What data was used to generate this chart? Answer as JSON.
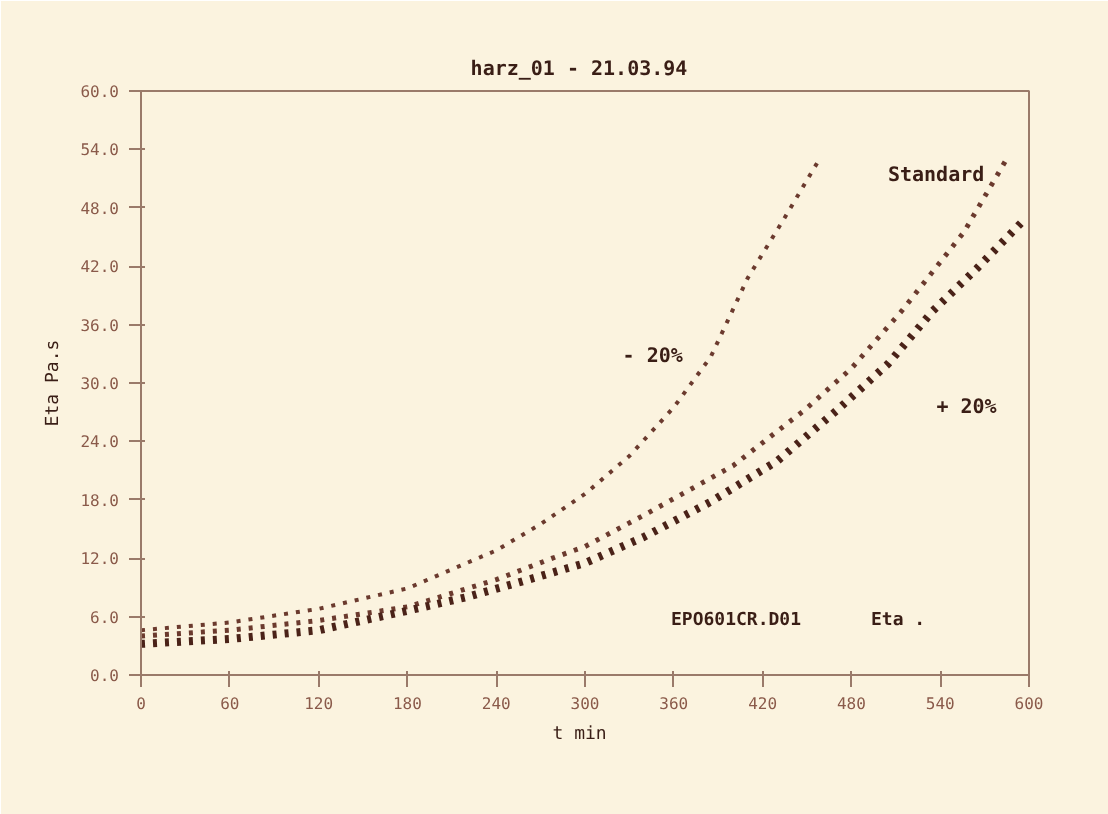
{
  "chart_data": {
    "type": "line",
    "title": "harz_01  - 21.03.94",
    "xlabel": "t  min",
    "ylabel": "Eta Pa.s",
    "xlim": [
      0,
      600
    ],
    "xticks": [
      0,
      60,
      120,
      180,
      240,
      300,
      360,
      420,
      480,
      540,
      600
    ],
    "ylim": [
      0,
      60
    ],
    "yticks": [
      {
        "value": 0,
        "label": "0.0"
      },
      {
        "value": 6,
        "label": "6.0"
      },
      {
        "value": 12,
        "label": "12.0"
      },
      {
        "value": 18,
        "label": "18.0"
      },
      {
        "value": 24,
        "label": "24.0"
      },
      {
        "value": 30,
        "label": "30.0"
      },
      {
        "value": 36,
        "label": "36.0"
      },
      {
        "value": 42,
        "label": "42.0"
      },
      {
        "value": 48,
        "label": "48.0"
      },
      {
        "value": 54,
        "label": "54.0"
      },
      {
        "value": 60,
        "label": "60.0"
      }
    ],
    "grid": false,
    "line_style": "dotted",
    "series": [
      {
        "name": "- 20%",
        "color": "#6b3a2e",
        "x": [
          0,
          60,
          120,
          180,
          240,
          270,
          300,
          330,
          360,
          385,
          410,
          435,
          458
        ],
        "values": [
          4.6,
          5.4,
          6.8,
          8.9,
          12.8,
          15.5,
          18.6,
          22.5,
          27.5,
          32.7,
          40.8,
          47.0,
          52.9
        ]
      },
      {
        "name": "Standard",
        "color": "#6b3a2e",
        "x": [
          0,
          60,
          120,
          180,
          240,
          278,
          300,
          342,
          400,
          449,
          480,
          514,
          556,
          586
        ],
        "values": [
          4.0,
          4.6,
          5.6,
          7.0,
          9.8,
          12.0,
          13.2,
          16.6,
          21.5,
          27.3,
          31.5,
          37.4,
          45.5,
          53.3
        ]
      },
      {
        "name": "+ 20%",
        "color": "#4a2218",
        "x": [
          0,
          60,
          120,
          180,
          220,
          255,
          300,
          340,
          385,
          430,
          471,
          505,
          535,
          565,
          595
        ],
        "values": [
          3.2,
          3.7,
          4.6,
          6.6,
          8.0,
          9.5,
          11.5,
          14.2,
          17.8,
          22.0,
          27.3,
          32.0,
          37.4,
          41.8,
          46.5
        ]
      }
    ],
    "annotations": [
      "EPO601CR.D01",
      "Eta ."
    ]
  }
}
